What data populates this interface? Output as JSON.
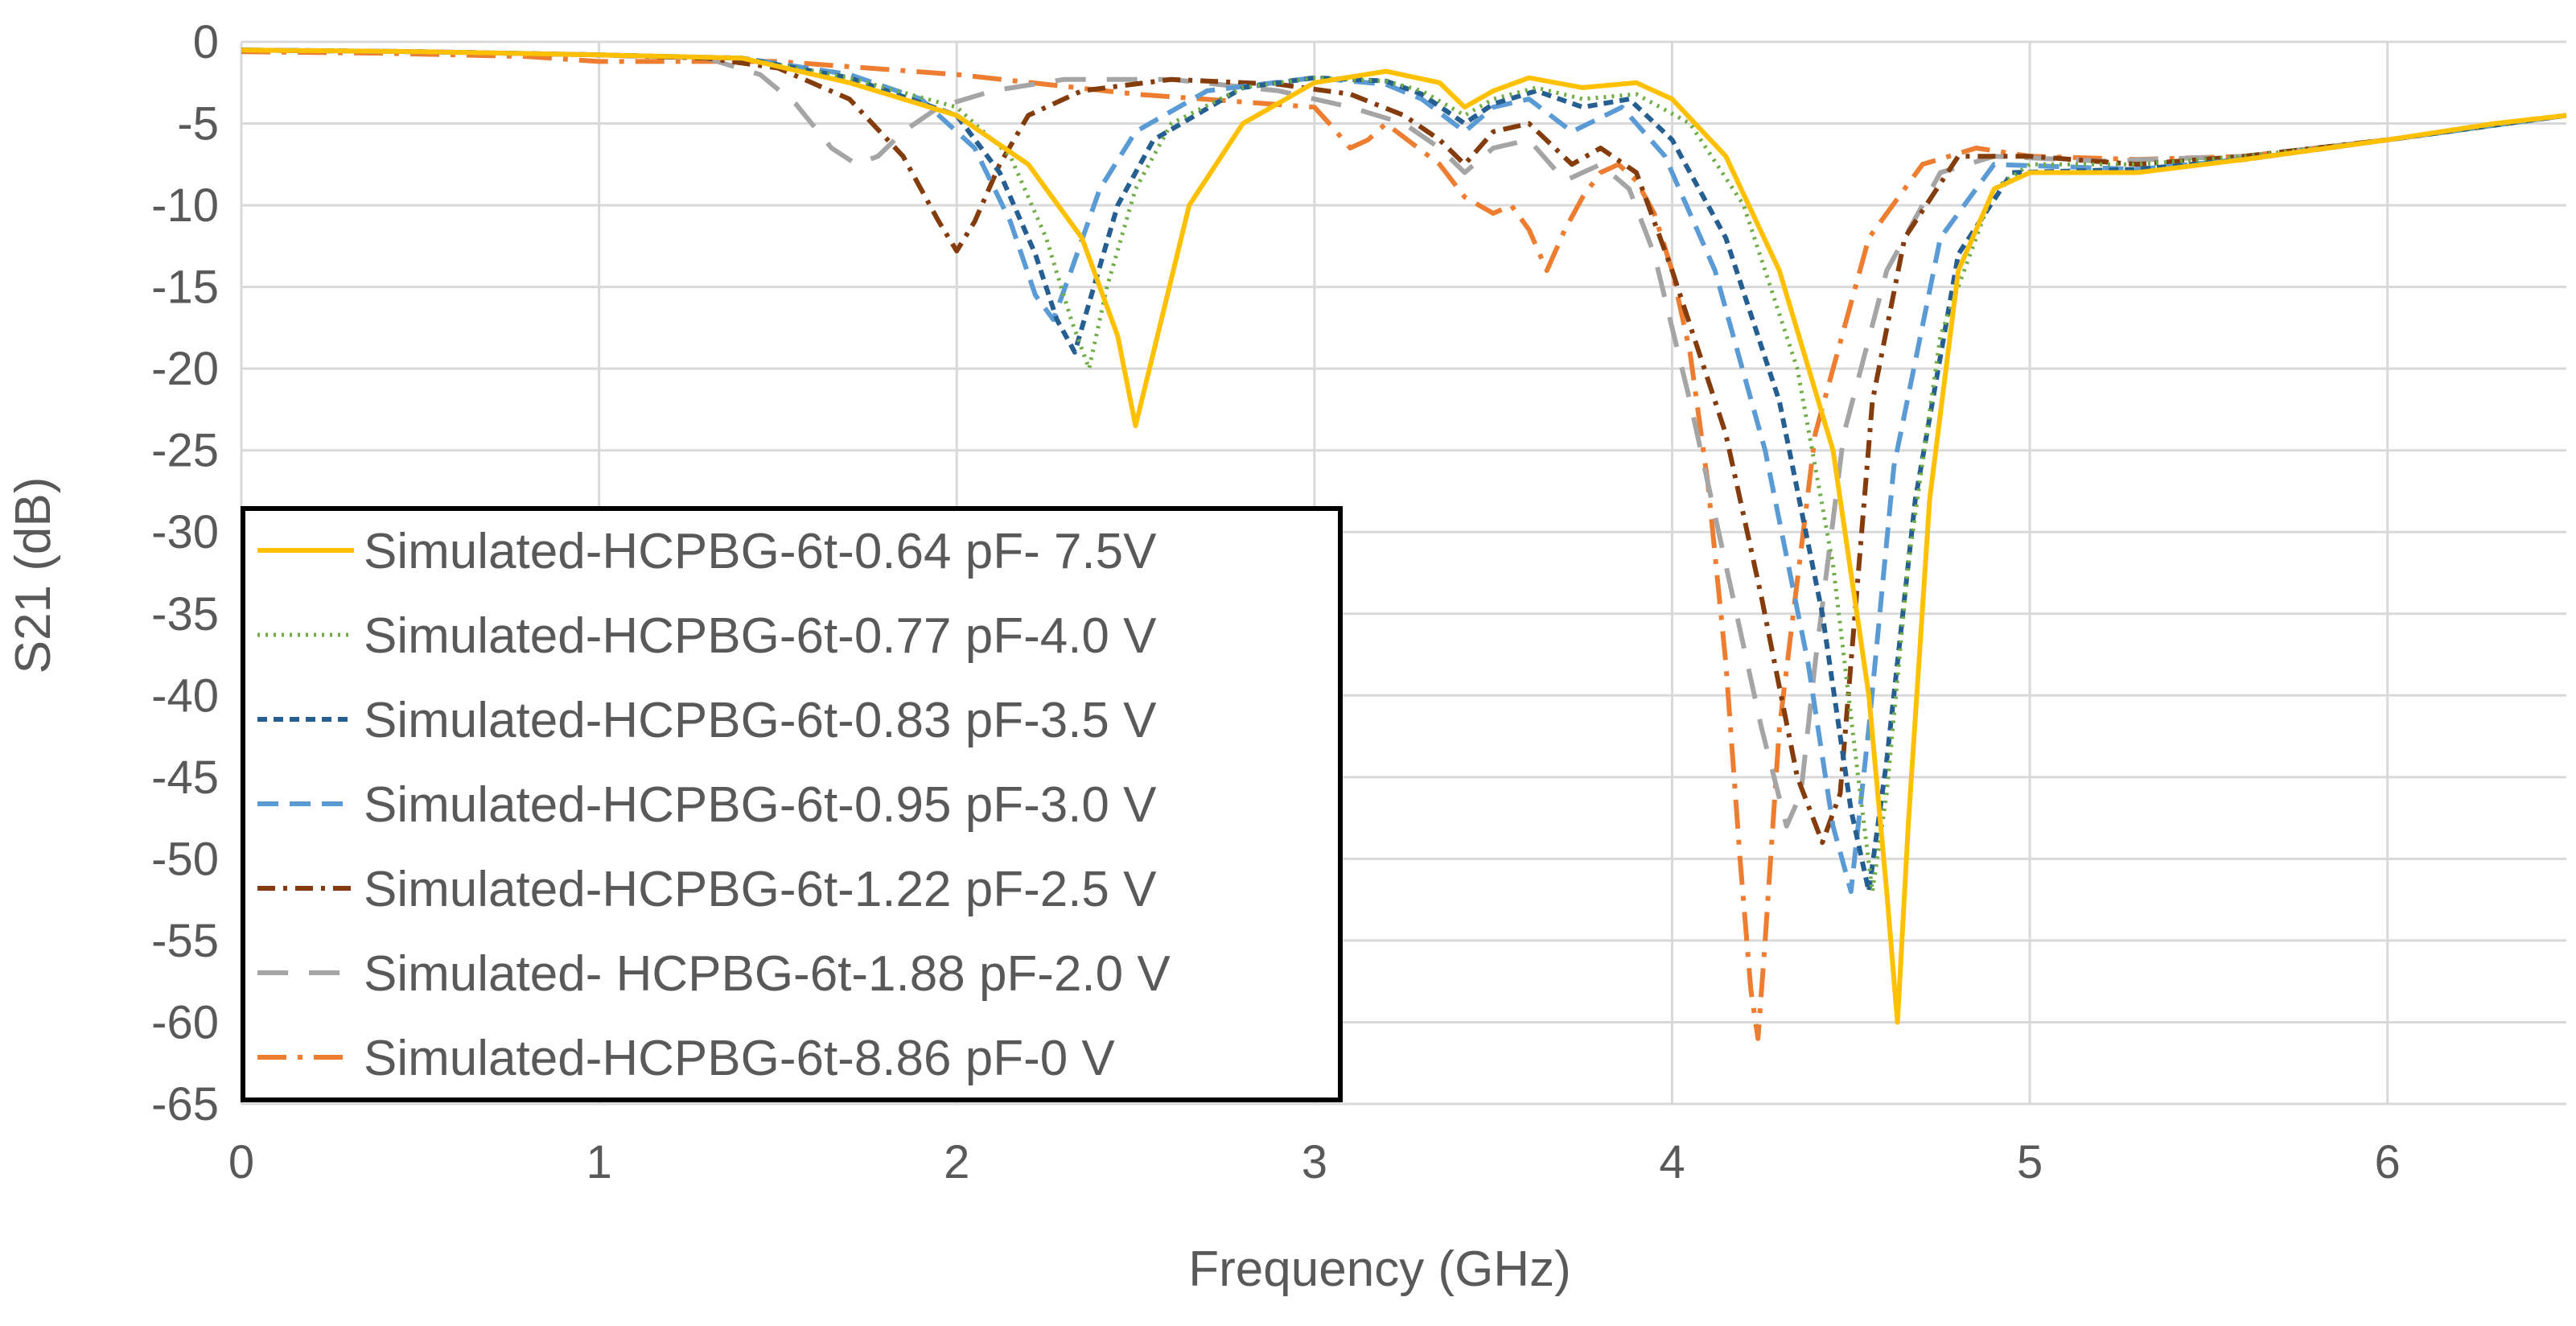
{
  "chart_data": {
    "type": "line",
    "title": "",
    "xlabel": "Frequency (GHz)",
    "ylabel": "S21 (dB)",
    "xlim": [
      0,
      6.5
    ],
    "ylim": [
      -65,
      0
    ],
    "xticks": [
      0,
      1,
      2,
      3,
      4,
      5,
      6
    ],
    "yticks": [
      0,
      -5,
      -10,
      -15,
      -20,
      -25,
      -30,
      -35,
      -40,
      -45,
      -50,
      -55,
      -60,
      -65
    ],
    "xtick_labels": [
      "0",
      "1",
      "2",
      "3",
      "4",
      "5",
      "6"
    ],
    "ytick_labels": [
      "0",
      "-5",
      "-10",
      "-15",
      "-20",
      "-25",
      "-30",
      "-35",
      "-40",
      "-45",
      "-50",
      "-55",
      "-60",
      "-65"
    ],
    "grid": true,
    "legend_position": "left",
    "series": [
      {
        "name": "Simulated-HCPBG-6t-0.64 pF- 7.5V",
        "color": "#FFC000",
        "style": "solid",
        "x": [
          0,
          0.5,
          1.0,
          1.4,
          1.7,
          2.0,
          2.2,
          2.35,
          2.45,
          2.5,
          2.55,
          2.65,
          2.8,
          3.0,
          3.2,
          3.35,
          3.42,
          3.5,
          3.6,
          3.75,
          3.9,
          4.0,
          4.15,
          4.3,
          4.45,
          4.55,
          4.6,
          4.63,
          4.66,
          4.72,
          4.8,
          4.9,
          5.0,
          5.3,
          5.6,
          6.0,
          6.3,
          6.5
        ],
        "y": [
          -0.5,
          -0.6,
          -0.8,
          -1.0,
          -2.5,
          -4.5,
          -7.5,
          -12,
          -18,
          -23.5,
          -19,
          -10,
          -5,
          -2.5,
          -1.8,
          -2.5,
          -4,
          -3,
          -2.2,
          -2.8,
          -2.5,
          -3.5,
          -7,
          -14,
          -25,
          -40,
          -52,
          -60,
          -48,
          -28,
          -14,
          -9,
          -8,
          -8,
          -7.2,
          -6,
          -5,
          -4.5
        ]
      },
      {
        "name": "Simulated-HCPBG-6t-0.77 pF-4.0 V",
        "color": "#70AD47",
        "style": "dotted",
        "x": [
          0,
          0.5,
          1.0,
          1.4,
          1.7,
          2.0,
          2.15,
          2.25,
          2.32,
          2.37,
          2.42,
          2.5,
          2.6,
          2.8,
          3.0,
          3.2,
          3.3,
          3.42,
          3.5,
          3.62,
          3.75,
          3.9,
          4.05,
          4.2,
          4.35,
          4.45,
          4.52,
          4.56,
          4.6,
          4.66,
          4.75,
          4.9,
          5.0,
          5.3,
          5.6,
          6.0,
          6.5
        ],
        "y": [
          -0.5,
          -0.6,
          -0.8,
          -1.0,
          -2.2,
          -4,
          -7,
          -12,
          -17,
          -20,
          -15,
          -9,
          -5,
          -2.8,
          -2.2,
          -2.4,
          -3,
          -4.5,
          -3.5,
          -2.8,
          -3.5,
          -3.2,
          -5,
          -10,
          -20,
          -32,
          -45,
          -52,
          -46,
          -32,
          -18,
          -9,
          -7.5,
          -7.5,
          -7,
          -6,
          -4.5
        ]
      },
      {
        "name": "Simulated-HCPBG-6t-0.83 pF-3.5 V",
        "color": "#255E91",
        "style": "dashed",
        "x": [
          0,
          0.5,
          1.0,
          1.4,
          1.7,
          2.0,
          2.12,
          2.22,
          2.28,
          2.33,
          2.37,
          2.45,
          2.55,
          2.8,
          3.0,
          3.2,
          3.3,
          3.42,
          3.5,
          3.62,
          3.75,
          3.88,
          4.0,
          4.15,
          4.3,
          4.42,
          4.5,
          4.55,
          4.6,
          4.68,
          4.8,
          4.95,
          5.3,
          5.6,
          6.0,
          6.5
        ],
        "y": [
          -0.5,
          -0.6,
          -0.8,
          -1.0,
          -2.2,
          -4.5,
          -8,
          -13,
          -17,
          -19,
          -16,
          -10,
          -6,
          -2.8,
          -2.2,
          -2.4,
          -3.2,
          -5,
          -3.8,
          -3,
          -4,
          -3.5,
          -6,
          -12,
          -22,
          -35,
          -47,
          -52,
          -44,
          -28,
          -13,
          -8,
          -7.8,
          -7.2,
          -6,
          -4.5
        ]
      },
      {
        "name": "Simulated-HCPBG-6t-0.95 pF-3.0 V",
        "color": "#5B9BD5",
        "style": "longdash",
        "x": [
          0,
          0.5,
          1.0,
          1.4,
          1.7,
          1.9,
          2.05,
          2.15,
          2.22,
          2.27,
          2.32,
          2.4,
          2.5,
          2.7,
          3.0,
          3.2,
          3.3,
          3.42,
          3.5,
          3.6,
          3.72,
          3.86,
          3.98,
          4.12,
          4.26,
          4.38,
          4.45,
          4.5,
          4.55,
          4.62,
          4.75,
          4.9,
          5.3,
          5.6,
          6.0,
          6.5
        ],
        "y": [
          -0.5,
          -0.6,
          -0.8,
          -1.0,
          -2.0,
          -3.5,
          -6.5,
          -11,
          -15.5,
          -17,
          -14,
          -9,
          -5.5,
          -3,
          -2.2,
          -2.6,
          -3.5,
          -5.5,
          -4,
          -3.5,
          -5.5,
          -4,
          -7,
          -14,
          -25,
          -38,
          -48,
          -52,
          -42,
          -26,
          -12,
          -7.5,
          -7.8,
          -7.2,
          -6,
          -4.5
        ]
      },
      {
        "name": "Simulated-HCPBG-6t-1.22 pF-2.5 V",
        "color": "#843C0C",
        "style": "dashdot",
        "x": [
          0,
          0.5,
          1.0,
          1.3,
          1.5,
          1.7,
          1.85,
          1.95,
          2.0,
          2.05,
          2.12,
          2.2,
          2.35,
          2.6,
          2.9,
          3.1,
          3.25,
          3.35,
          3.42,
          3.5,
          3.6,
          3.72,
          3.8,
          3.9,
          4.0,
          4.15,
          4.25,
          4.35,
          4.42,
          4.47,
          4.5,
          4.56,
          4.65,
          4.8,
          5.0,
          5.3,
          5.6,
          6.0,
          6.5
        ],
        "y": [
          -0.5,
          -0.6,
          -0.8,
          -1.0,
          -1.6,
          -3.5,
          -7,
          -11,
          -12.8,
          -11,
          -7.5,
          -4.5,
          -3,
          -2.3,
          -2.6,
          -3.2,
          -4.5,
          -6,
          -7.5,
          -5.5,
          -5,
          -7.5,
          -6.5,
          -8,
          -14,
          -24,
          -34,
          -45,
          -49,
          -46,
          -38,
          -22,
          -12,
          -7,
          -7,
          -7.5,
          -7,
          -6,
          -4.5
        ]
      },
      {
        "name": "Simulated- HCPBG-6t-1.88 pF-2.0 V",
        "color": "#A5A5A5",
        "style": "gap-dash",
        "x": [
          0,
          0.5,
          1.0,
          1.3,
          1.45,
          1.55,
          1.65,
          1.72,
          1.78,
          1.85,
          1.95,
          2.1,
          2.3,
          2.6,
          2.9,
          3.1,
          3.25,
          3.35,
          3.42,
          3.5,
          3.6,
          3.7,
          3.8,
          3.88,
          3.95,
          4.05,
          4.15,
          4.25,
          4.32,
          4.36,
          4.4,
          4.48,
          4.6,
          4.75,
          4.9,
          5.2,
          5.6,
          6.0,
          6.5
        ],
        "y": [
          -0.5,
          -0.6,
          -0.8,
          -1.0,
          -2.0,
          -3.8,
          -6.5,
          -7.5,
          -7,
          -5.5,
          -4,
          -3,
          -2.3,
          -2.3,
          -3,
          -4,
          -5,
          -6.5,
          -8,
          -6.5,
          -6,
          -8.5,
          -7.5,
          -9,
          -13,
          -22,
          -32,
          -42,
          -48,
          -46,
          -38,
          -24,
          -14,
          -8,
          -7,
          -7.3,
          -7,
          -6,
          -4.5
        ]
      },
      {
        "name": "Simulated-HCPBG-6t-8.86 pF-0 V",
        "color": "#ED7D31",
        "style": "longdashdot",
        "x": [
          0,
          0.4,
          0.8,
          1.0,
          1.2,
          1.5,
          2.0,
          2.5,
          3.0,
          3.05,
          3.1,
          3.15,
          3.2,
          3.35,
          3.42,
          3.5,
          3.55,
          3.6,
          3.65,
          3.7,
          3.75,
          3.8,
          3.85,
          3.9,
          3.95,
          4.0,
          4.05,
          4.1,
          4.15,
          4.19,
          4.22,
          4.24,
          4.26,
          4.3,
          4.4,
          4.55,
          4.7,
          4.85,
          5.0,
          5.3,
          5.6,
          6.0,
          6.5
        ],
        "y": [
          -0.6,
          -0.7,
          -0.9,
          -1.2,
          -1.2,
          -1.2,
          -2.0,
          -3.2,
          -4.0,
          -5.2,
          -6.5,
          -6.0,
          -5.0,
          -7.5,
          -9.5,
          -10.5,
          -10.0,
          -11.5,
          -14.0,
          -11.5,
          -9.5,
          -8.0,
          -7.5,
          -8.5,
          -10.5,
          -14,
          -19,
          -27,
          -38,
          -50,
          -58,
          -61,
          -55,
          -42,
          -24,
          -12,
          -7.5,
          -6.5,
          -7,
          -7.2,
          -7,
          -6,
          -4.5
        ]
      }
    ]
  }
}
